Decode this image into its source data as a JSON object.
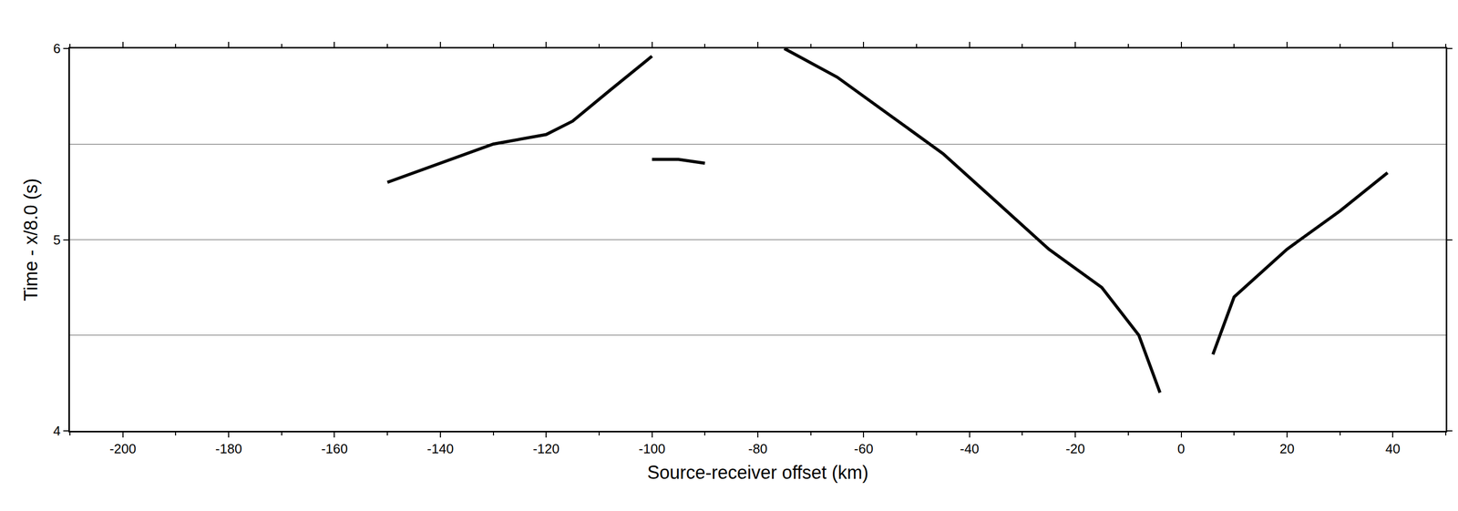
{
  "chart_data": {
    "type": "line",
    "x_label": "Source-receiver offset (km)",
    "y_label": "Time - x/8.0 (s)",
    "xlim": [
      -210,
      50
    ],
    "xticks": [
      -200,
      -180,
      -160,
      -140,
      -120,
      -100,
      -80,
      -60,
      -40,
      -20,
      0,
      20,
      40
    ],
    "ylim": [
      4,
      6
    ],
    "yticks": [
      4,
      5,
      6
    ],
    "grid": "y",
    "series": [
      {
        "color": "#000000",
        "line_style": "solid",
        "x": [
          -75,
          -65,
          -55,
          -45,
          -35,
          -25,
          -15,
          -8,
          -4
        ],
        "values": [
          6.0,
          5.85,
          5.65,
          5.45,
          5.2,
          4.95,
          4.75,
          4.5,
          4.2
        ]
      },
      {
        "color": "#000000",
        "line_style": "solid",
        "x": [
          6,
          10,
          20,
          30,
          39
        ],
        "values": [
          4.4,
          4.7,
          4.95,
          5.15,
          5.35
        ]
      },
      {
        "color": "#000000",
        "line_style": "solid",
        "x": [
          -150,
          -140,
          -130,
          -120,
          -115,
          -108,
          -100
        ],
        "values": [
          5.3,
          5.4,
          5.5,
          5.55,
          5.62,
          5.78,
          5.96
        ]
      },
      {
        "color": "#000000",
        "line_style": "solid",
        "x": [
          -100,
          -95,
          -90
        ],
        "values": [
          5.42,
          5.42,
          5.4
        ]
      }
    ]
  }
}
